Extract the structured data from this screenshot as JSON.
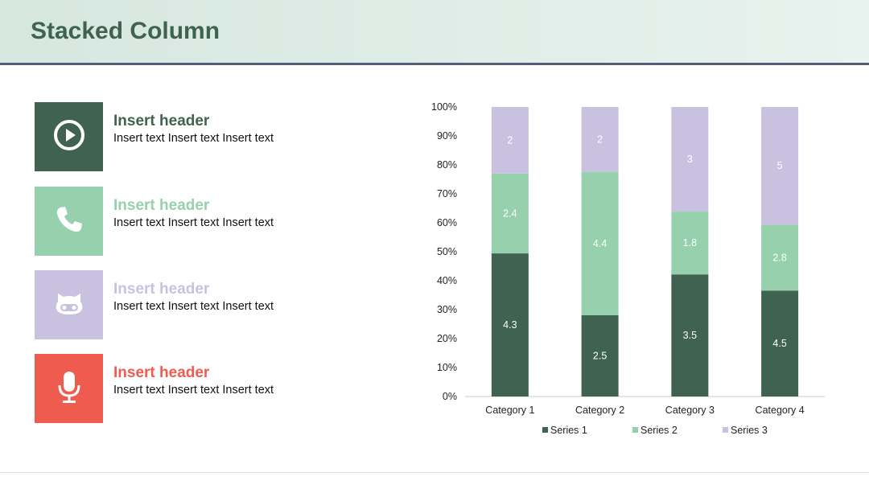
{
  "title": "Stacked Column",
  "items": [
    {
      "header": "Insert header",
      "text": "Insert text Insert text Insert text",
      "color": "#3f6350",
      "icon": "play-icon"
    },
    {
      "header": "Insert header",
      "text": "Insert text Insert text Insert text",
      "color": "#96d0ad",
      "icon": "phone-icon"
    },
    {
      "header": "Insert header",
      "text": "Insert text Insert text Insert text",
      "color": "#c8c1df",
      "icon": "github-icon"
    },
    {
      "header": "Insert header",
      "text": "Insert text Insert text Insert text",
      "color": "#ef5b4f",
      "icon": "microphone-icon"
    }
  ],
  "chart_data": {
    "type": "bar",
    "stacked": "percent",
    "categories": [
      "Category 1",
      "Category 2",
      "Category 3",
      "Category 4"
    ],
    "series": [
      {
        "name": "Series 1",
        "values": [
          4.3,
          2.5,
          3.5,
          4.5
        ],
        "color": "#3f6350"
      },
      {
        "name": "Series 2",
        "values": [
          2.4,
          4.4,
          1.8,
          2.8
        ],
        "color": "#96d0ad"
      },
      {
        "name": "Series 3",
        "values": [
          2,
          2,
          3,
          5
        ],
        "color": "#c8c1df"
      }
    ],
    "yticks": [
      "0%",
      "10%",
      "20%",
      "30%",
      "40%",
      "50%",
      "60%",
      "70%",
      "80%",
      "90%",
      "100%"
    ],
    "ylim": [
      0,
      100
    ],
    "legend": "bottom"
  }
}
